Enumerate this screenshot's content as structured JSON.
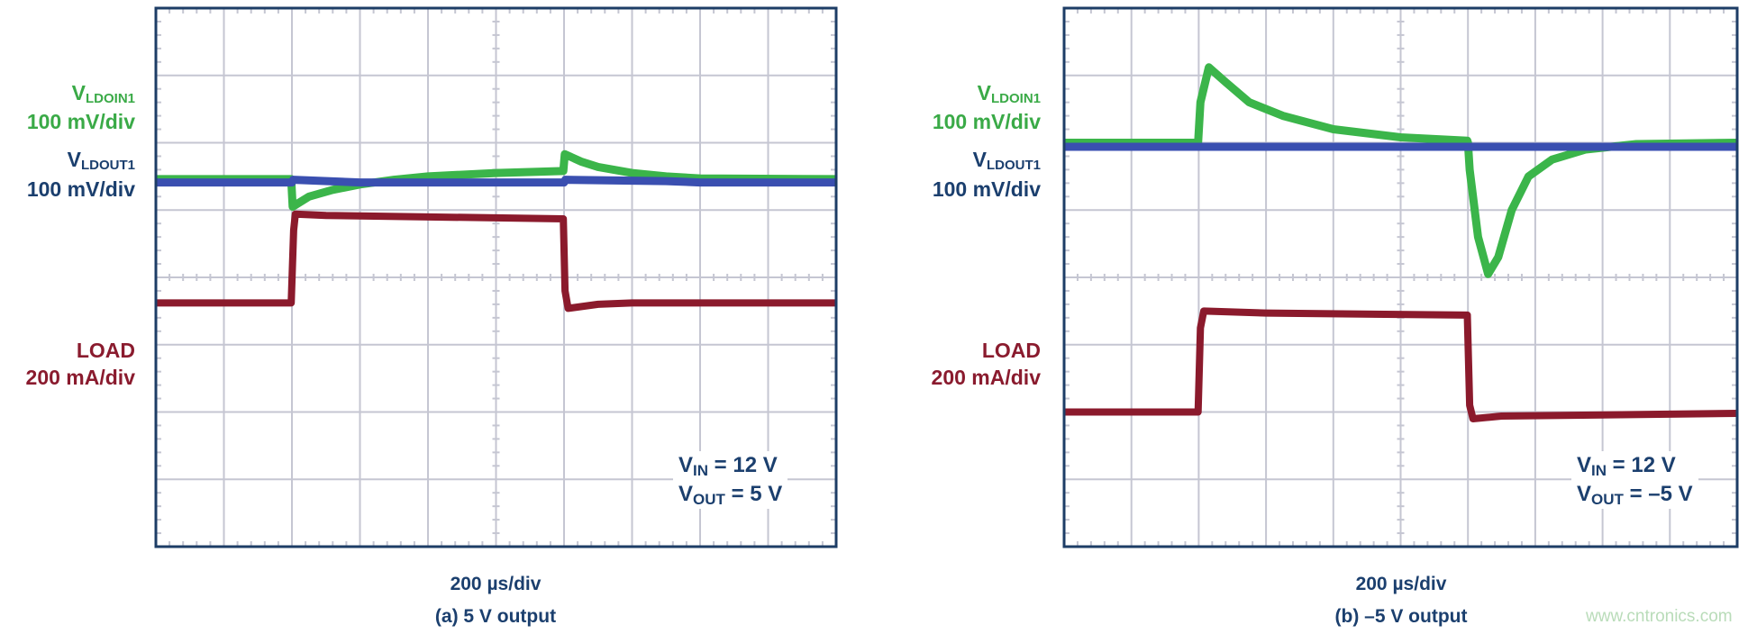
{
  "colors": {
    "ldoin": "#3bb54a",
    "ldout": "#3a4fb0",
    "load": "#8b1a2c",
    "text": "#1b3f6e",
    "grid": "#c5c6d2",
    "frame": "#1d3d66"
  },
  "watermark": "www.cntronics.com",
  "chart_data": [
    {
      "type": "line",
      "title": "(a) 5 V output",
      "xlabel": "200 µs/div",
      "grid": true,
      "xlim": [
        0,
        2000
      ],
      "ylim_div": [
        -4,
        4
      ],
      "labels": {
        "ldoin_name": "V",
        "ldoin_sub": "LDOIN1",
        "ldoin_scale": "100 mV/div",
        "ldout_name": "V",
        "ldout_sub": "LDOUT1",
        "ldout_scale": "100 mV/div",
        "load_name": "LOAD",
        "load_scale": "200 mA/div"
      },
      "conditions": {
        "vin_name": "V",
        "vin_sub": "IN",
        "vin_val": " = 12 V",
        "vout_name": "V",
        "vout_sub": "OUT",
        "vout_val": " = 5 V"
      },
      "series": [
        {
          "key": "ldoin",
          "points": [
            [
              0,
              1.46
            ],
            [
              398,
              1.46
            ],
            [
              402,
              1.05
            ],
            [
              450,
              1.2
            ],
            [
              520,
              1.3
            ],
            [
              600,
              1.38
            ],
            [
              700,
              1.45
            ],
            [
              800,
              1.5
            ],
            [
              1000,
              1.55
            ],
            [
              1198,
              1.58
            ],
            [
              1202,
              1.83
            ],
            [
              1250,
              1.72
            ],
            [
              1300,
              1.64
            ],
            [
              1400,
              1.55
            ],
            [
              1500,
              1.5
            ],
            [
              1600,
              1.47
            ],
            [
              2000,
              1.46
            ]
          ]
        },
        {
          "key": "ldout",
          "points": [
            [
              0,
              1.41
            ],
            [
              400,
              1.41
            ],
            [
              404,
              1.45
            ],
            [
              600,
              1.41
            ],
            [
              1200,
              1.41
            ],
            [
              1204,
              1.45
            ],
            [
              1500,
              1.43
            ],
            [
              1600,
              1.41
            ],
            [
              2000,
              1.41
            ]
          ]
        },
        {
          "key": "load",
          "points": [
            [
              0,
              -0.38
            ],
            [
              398,
              -0.38
            ],
            [
              405,
              0.7
            ],
            [
              410,
              0.94
            ],
            [
              500,
              0.92
            ],
            [
              1198,
              0.87
            ],
            [
              1203,
              -0.2
            ],
            [
              1212,
              -0.46
            ],
            [
              1300,
              -0.4
            ],
            [
              1400,
              -0.38
            ],
            [
              2000,
              -0.38
            ]
          ]
        }
      ]
    },
    {
      "type": "line",
      "title": "(b) –5 V output",
      "xlabel": "200 µs/div",
      "grid": true,
      "xlim": [
        0,
        2000
      ],
      "ylim_div": [
        -4,
        4
      ],
      "labels": {
        "ldoin_name": "V",
        "ldoin_sub": "LDOIN1",
        "ldoin_scale": "100 mV/div",
        "ldout_name": "V",
        "ldout_sub": "LDOUT1",
        "ldout_scale": "100 mV/div",
        "load_name": "LOAD",
        "load_scale": "200 mA/div"
      },
      "conditions": {
        "vin_name": "V",
        "vin_sub": "IN",
        "vin_val": " = 12 V",
        "vout_name": "V",
        "vout_sub": "OUT",
        "vout_val": " = –5 V"
      },
      "series": [
        {
          "key": "ldoin",
          "points": [
            [
              0,
              2.0
            ],
            [
              398,
              2.0
            ],
            [
              405,
              2.6
            ],
            [
              430,
              3.12
            ],
            [
              480,
              2.9
            ],
            [
              550,
              2.6
            ],
            [
              650,
              2.4
            ],
            [
              800,
              2.2
            ],
            [
              1000,
              2.08
            ],
            [
              1198,
              2.03
            ],
            [
              1200,
              2.0
            ],
            [
              1205,
              1.6
            ],
            [
              1230,
              0.6
            ],
            [
              1260,
              0.05
            ],
            [
              1290,
              0.3
            ],
            [
              1330,
              1.0
            ],
            [
              1380,
              1.5
            ],
            [
              1450,
              1.75
            ],
            [
              1550,
              1.9
            ],
            [
              1700,
              1.98
            ],
            [
              2000,
              2.0
            ]
          ]
        },
        {
          "key": "ldout",
          "points": [
            [
              0,
              1.94
            ],
            [
              2000,
              1.94
            ]
          ]
        },
        {
          "key": "load",
          "points": [
            [
              0,
              -2.0
            ],
            [
              398,
              -2.0
            ],
            [
              405,
              -0.75
            ],
            [
              415,
              -0.5
            ],
            [
              600,
              -0.53
            ],
            [
              1198,
              -0.56
            ],
            [
              1205,
              -1.9
            ],
            [
              1215,
              -2.1
            ],
            [
              1300,
              -2.06
            ],
            [
              2000,
              -2.02
            ]
          ]
        }
      ]
    }
  ]
}
